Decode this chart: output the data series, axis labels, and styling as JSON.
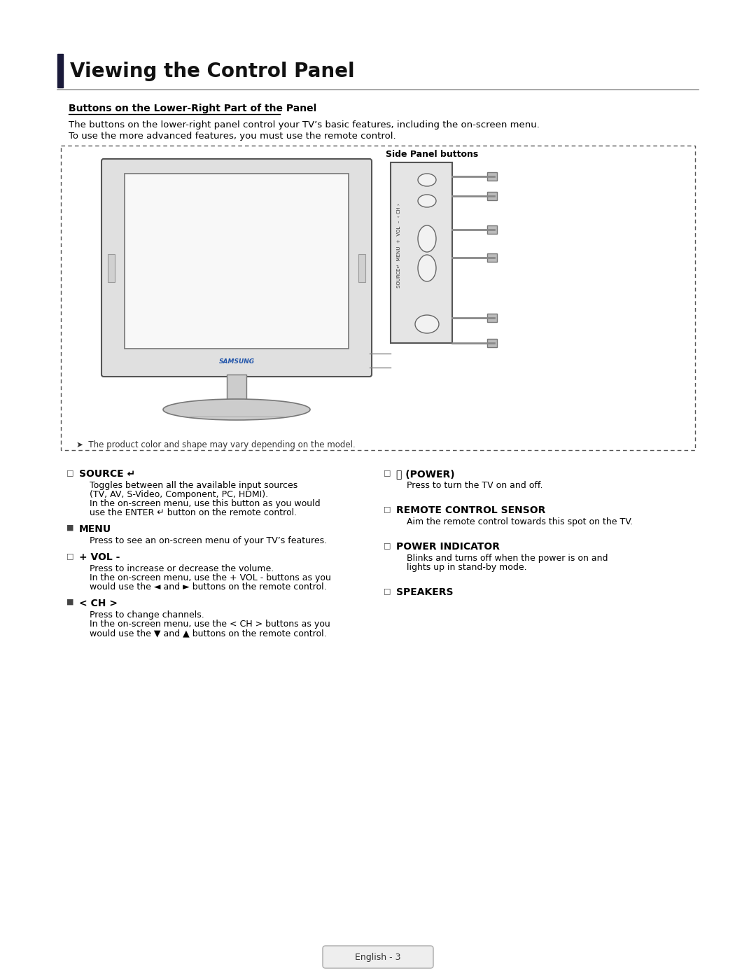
{
  "title": "Viewing the Control Panel",
  "subtitle": "Buttons on the Lower-Right Part of the Panel",
  "intro_line1": "The buttons on the lower-right panel control your TV’s basic features, including the on-screen menu.",
  "intro_line2": "To use the more advanced features, you must use the remote control.",
  "side_panel_label": "Side Panel buttons",
  "note_text": "➤  The product color and shape may vary depending on the model.",
  "footer_text": "English - 3",
  "bg_color": "#ffffff",
  "text_color": "#000000",
  "items_left": [
    {
      "bullet": "□",
      "label": "SOURCE ↵",
      "desc": "Toggles between all the available input sources\n(TV, AV, S-Video, Component, PC, HDMI).\nIn the on-screen menu, use this button as you would\nuse the ENTER ↵ button on the remote control.",
      "bold_in_desc": [
        "ENTER ↵"
      ]
    },
    {
      "bullet": "■",
      "label": "MENU",
      "desc": "Press to see an on-screen menu of your TV’s features.",
      "bold_in_desc": []
    },
    {
      "bullet": "□",
      "label": "+ VOL -",
      "desc": "Press to increase or decrease the volume.\nIn the on-screen menu, use the + VOL - buttons as you\nwould use the ◄ and ► buttons on the remote control.",
      "bold_in_desc": [
        "+ VOL -"
      ]
    },
    {
      "bullet": "■",
      "label": "< CH >",
      "desc": "Press to change channels.\nIn the on-screen menu, use the < CH > buttons as you\nwould use the ▼ and ▲ buttons on the remote control.",
      "bold_in_desc": [
        "< CH >"
      ]
    }
  ],
  "items_right": [
    {
      "bullet": "□",
      "label": "⏻ (POWER)",
      "desc": "Press to turn the TV on and off."
    },
    {
      "bullet": "□",
      "label": "REMOTE CONTROL SENSOR",
      "desc": "Aim the remote control towards this spot on the TV."
    },
    {
      "bullet": "□",
      "label": "POWER INDICATOR",
      "desc": "Blinks and turns off when the power is on and\nlights up in stand-by mode."
    },
    {
      "bullet": "□",
      "label": "SPEAKERS",
      "desc": ""
    }
  ]
}
